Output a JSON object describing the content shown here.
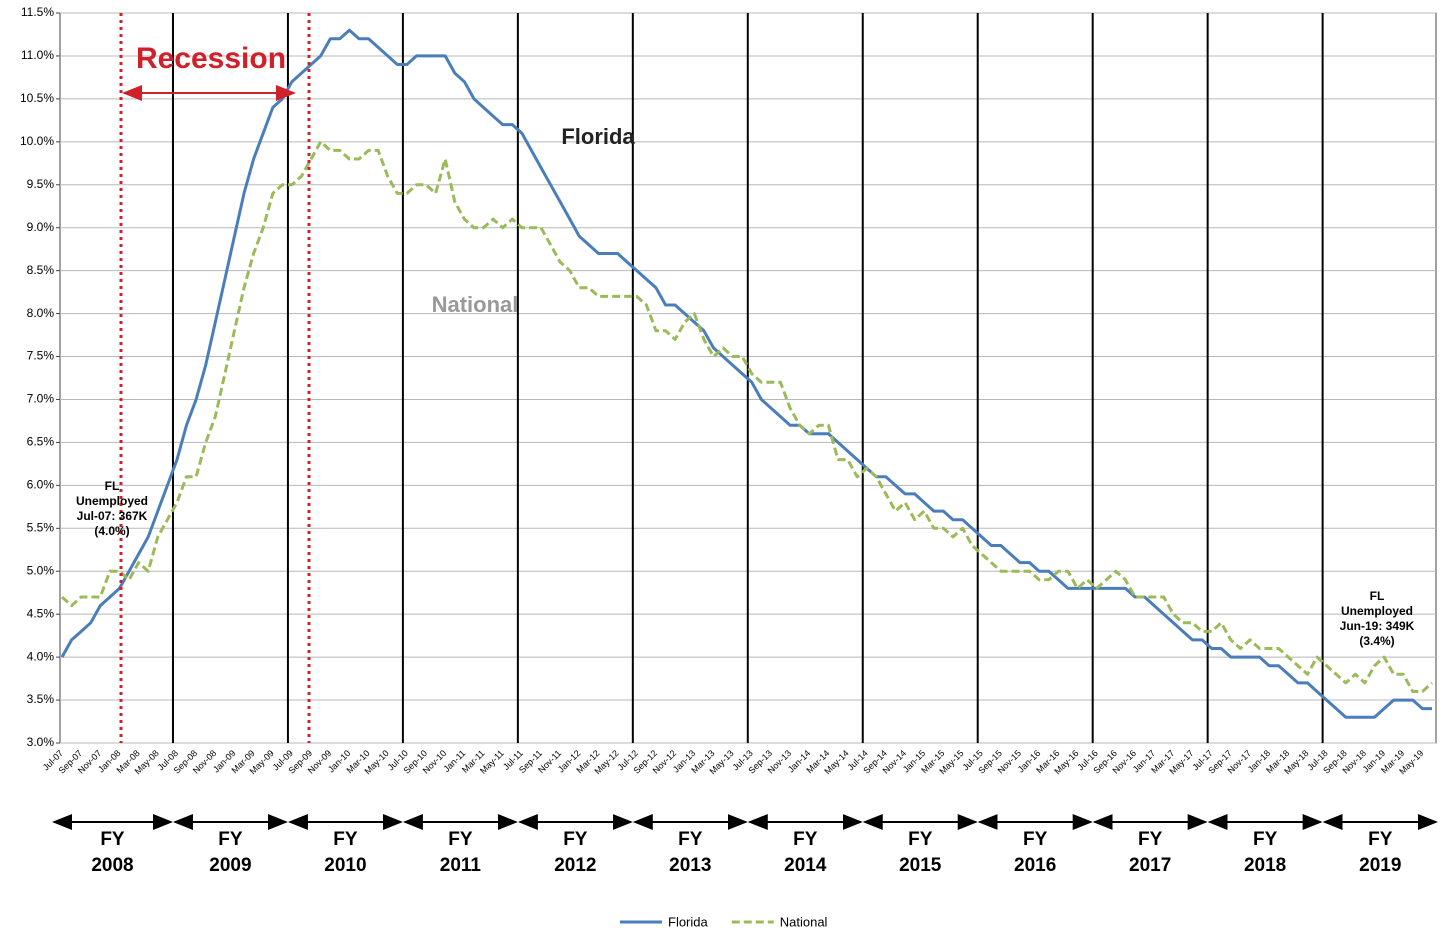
{
  "chart_data": {
    "type": "line",
    "categories": [
      "Jul-07",
      null,
      "Sep-07",
      null,
      "Nov-07",
      null,
      "Jan-08",
      null,
      "Mar-08",
      null,
      "May-08",
      null,
      "Jul-08",
      null,
      "Sep-08",
      null,
      "Nov-08",
      null,
      "Jan-09",
      null,
      "Mar-09",
      null,
      "May-09",
      null,
      "Jul-09",
      null,
      "Sep-09",
      null,
      "Nov-09",
      null,
      "Jan-10",
      null,
      "Mar-10",
      null,
      "May-10",
      null,
      "Jul-10",
      null,
      "Sep-10",
      null,
      "Nov-10",
      null,
      "Jan-11",
      null,
      "Mar-11",
      null,
      "May-11",
      null,
      "Jul-11",
      null,
      "Sep-11",
      null,
      "Nov-11",
      null,
      "Jan-12",
      null,
      "Mar-12",
      null,
      "May-12",
      null,
      "Jul-12",
      null,
      "Sep-12",
      null,
      "Nov-12",
      null,
      "Jan-13",
      null,
      "Mar-13",
      null,
      "May-13",
      null,
      "Jul-13",
      null,
      "Sep-13",
      null,
      "Nov-13",
      null,
      "Jan-14",
      null,
      "Mar-14",
      null,
      "May-14",
      null,
      "Jul-14",
      null,
      "Sep-14",
      null,
      "Nov-14",
      null,
      "Jan-15",
      null,
      "Mar-15",
      null,
      "May-15",
      null,
      "Jul-15",
      null,
      "Sep-15",
      null,
      "Nov-15",
      null,
      "Jan-16",
      null,
      "Mar-16",
      null,
      "May-16",
      null,
      "Jul-16",
      null,
      "Sep-16",
      null,
      "Nov-16",
      null,
      "Jan-17",
      null,
      "Mar-17",
      null,
      "May-17",
      null,
      "Jul-17",
      null,
      "Sep-17",
      null,
      "Nov-17",
      null,
      "Jan-18",
      null,
      "Mar-18",
      null,
      "May-18",
      null,
      "Jul-18",
      null,
      "Sep-18",
      null,
      "Nov-18",
      null,
      "Jan-19",
      null,
      "Mar-19",
      null,
      "May-19",
      null
    ],
    "series": [
      {
        "name": "Florida",
        "color": "#4a7ebb",
        "dashed": false,
        "values": [
          4.0,
          4.2,
          4.3,
          4.4,
          4.6,
          4.7,
          4.8,
          5.0,
          5.2,
          5.4,
          5.7,
          6.0,
          6.3,
          6.7,
          7.0,
          7.4,
          7.9,
          8.4,
          8.9,
          9.4,
          9.8,
          10.1,
          10.4,
          10.5,
          10.7,
          10.8,
          10.9,
          11.0,
          11.2,
          11.2,
          11.3,
          11.2,
          11.2,
          11.1,
          11.0,
          10.9,
          10.9,
          11.0,
          11.0,
          11.0,
          11.0,
          10.8,
          10.7,
          10.5,
          10.4,
          10.3,
          10.2,
          10.2,
          10.1,
          9.9,
          9.7,
          9.5,
          9.3,
          9.1,
          8.9,
          8.8,
          8.7,
          8.7,
          8.7,
          8.6,
          8.5,
          8.4,
          8.3,
          8.1,
          8.1,
          8.0,
          7.9,
          7.8,
          7.6,
          7.5,
          7.4,
          7.3,
          7.2,
          7.0,
          6.9,
          6.8,
          6.7,
          6.7,
          6.6,
          6.6,
          6.6,
          6.5,
          6.4,
          6.3,
          6.2,
          6.1,
          6.1,
          6.0,
          5.9,
          5.9,
          5.8,
          5.7,
          5.7,
          5.6,
          5.6,
          5.5,
          5.4,
          5.3,
          5.3,
          5.2,
          5.1,
          5.1,
          5.0,
          5.0,
          4.9,
          4.8,
          4.8,
          4.8,
          4.8,
          4.8,
          4.8,
          4.8,
          4.7,
          4.7,
          4.6,
          4.5,
          4.4,
          4.3,
          4.2,
          4.2,
          4.1,
          4.1,
          4.0,
          4.0,
          4.0,
          4.0,
          3.9,
          3.9,
          3.8,
          3.7,
          3.7,
          3.6,
          3.5,
          3.4,
          3.3,
          3.3,
          3.3,
          3.3,
          3.4,
          3.5,
          3.5,
          3.5,
          3.4,
          3.4
        ]
      },
      {
        "name": "National",
        "color": "#9bbb59",
        "dashed": true,
        "values": [
          4.7,
          4.6,
          4.7,
          4.7,
          4.7,
          5.0,
          5.0,
          4.9,
          5.1,
          5.0,
          5.4,
          5.6,
          5.8,
          6.1,
          6.1,
          6.5,
          6.8,
          7.3,
          7.8,
          8.3,
          8.7,
          9.0,
          9.4,
          9.5,
          9.5,
          9.6,
          9.8,
          10.0,
          9.9,
          9.9,
          9.8,
          9.8,
          9.9,
          9.9,
          9.6,
          9.4,
          9.4,
          9.5,
          9.5,
          9.4,
          9.8,
          9.3,
          9.1,
          9.0,
          9.0,
          9.1,
          9.0,
          9.1,
          9.0,
          9.0,
          9.0,
          8.8,
          8.6,
          8.5,
          8.3,
          8.3,
          8.2,
          8.2,
          8.2,
          8.2,
          8.2,
          8.1,
          7.8,
          7.8,
          7.7,
          7.9,
          8.0,
          7.7,
          7.5,
          7.6,
          7.5,
          7.5,
          7.3,
          7.2,
          7.2,
          7.2,
          6.9,
          6.7,
          6.6,
          6.7,
          6.7,
          6.3,
          6.3,
          6.1,
          6.2,
          6.1,
          5.9,
          5.7,
          5.8,
          5.6,
          5.7,
          5.5,
          5.5,
          5.4,
          5.5,
          5.3,
          5.2,
          5.1,
          5.0,
          5.0,
          5.0,
          5.0,
          4.9,
          4.9,
          5.0,
          5.0,
          4.8,
          4.9,
          4.8,
          4.9,
          5.0,
          4.9,
          4.7,
          4.7,
          4.7,
          4.7,
          4.5,
          4.4,
          4.4,
          4.3,
          4.3,
          4.4,
          4.2,
          4.1,
          4.2,
          4.1,
          4.1,
          4.1,
          4.0,
          3.9,
          3.8,
          4.0,
          3.9,
          3.8,
          3.7,
          3.8,
          3.7,
          3.9,
          4.0,
          3.8,
          3.8,
          3.6,
          3.6,
          3.7
        ]
      }
    ],
    "ylim": [
      3.0,
      11.5
    ],
    "yticks": [
      {
        "value": 3.0,
        "label": "3.0%"
      },
      {
        "value": 3.5,
        "label": "3.5%"
      },
      {
        "value": 4.0,
        "label": "4.0%"
      },
      {
        "value": 4.5,
        "label": "4.5%"
      },
      {
        "value": 5.0,
        "label": "5.0%"
      },
      {
        "value": 5.5,
        "label": "5.5%"
      },
      {
        "value": 6.0,
        "label": "6.0%"
      },
      {
        "value": 6.5,
        "label": "6.5%"
      },
      {
        "value": 7.0,
        "label": "7.0%"
      },
      {
        "value": 7.5,
        "label": "7.5%"
      },
      {
        "value": 8.0,
        "label": "8.0%"
      },
      {
        "value": 8.5,
        "label": "8.5%"
      },
      {
        "value": 9.0,
        "label": "9.0%"
      },
      {
        "value": 9.5,
        "label": "9.5%"
      },
      {
        "value": 10.0,
        "label": "10.0%"
      },
      {
        "value": 10.5,
        "label": "10.5%"
      },
      {
        "value": 11.0,
        "label": "11.0%"
      },
      {
        "value": 11.5,
        "label": "11.5%"
      }
    ],
    "grid": true,
    "legend": "bottom",
    "fiscal_years": [
      [
        "FY",
        "2008"
      ],
      [
        "FY",
        "2009"
      ],
      [
        "FY",
        "2010"
      ],
      [
        "FY",
        "2011"
      ],
      [
        "FY",
        "2012"
      ],
      [
        "FY",
        "2013"
      ],
      [
        "FY",
        "2014"
      ],
      [
        "FY",
        "2015"
      ],
      [
        "FY",
        "2016"
      ],
      [
        "FY",
        "2017"
      ],
      [
        "FY",
        "2018"
      ],
      [
        "FY",
        "2019"
      ]
    ],
    "annotations": {
      "recession": "Recession",
      "florida": "Florida",
      "national": "National",
      "start_note": [
        "FL",
        "Unemployed",
        "Jul-07: 367K",
        "(4.0%)"
      ],
      "end_note": [
        "FL",
        "Unemployed",
        "Jun-19: 349K",
        "(3.4%)"
      ]
    }
  }
}
